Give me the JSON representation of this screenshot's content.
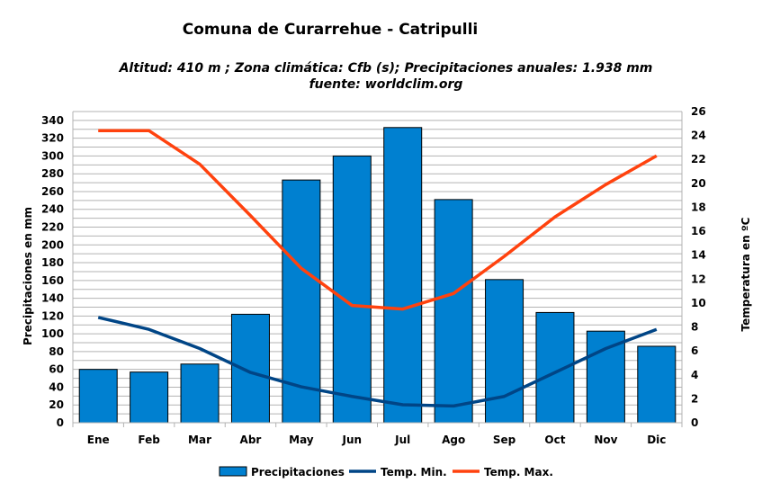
{
  "chart_data": {
    "type": "bar+line",
    "title": "Comuna de Curarrehue - Catripulli",
    "subtitle": "Altitud: 410 m ;  Zona climática: Cfb (s);  Precipitaciones anuales: 1.938 mm",
    "source": "fuente: worldclim.org",
    "categories": [
      "Ene",
      "Feb",
      "Mar",
      "Abr",
      "May",
      "Jun",
      "Jul",
      "Ago",
      "Sep",
      "Oct",
      "Nov",
      "Dic"
    ],
    "ylabel": "Precipitaciones en mm",
    "y2label": "Temperatura en ºC",
    "ylim": [
      0,
      350
    ],
    "yticks": [
      0,
      20,
      40,
      60,
      80,
      100,
      120,
      140,
      160,
      180,
      200,
      220,
      240,
      260,
      280,
      300,
      320,
      340
    ],
    "y2lim": [
      0,
      26
    ],
    "y2ticks": [
      0,
      2,
      4,
      6,
      8,
      10,
      12,
      14,
      16,
      18,
      20,
      22,
      24,
      26
    ],
    "grid": true,
    "legend_position": "bottom",
    "series": [
      {
        "name": "Precipitaciones",
        "type": "bar",
        "axis": "left",
        "color": "#0080d0",
        "values": [
          60,
          57,
          66,
          122,
          273,
          300,
          332,
          251,
          161,
          124,
          103,
          86
        ]
      },
      {
        "name": "Temp. Min.",
        "type": "line",
        "axis": "right",
        "color": "#004586",
        "values": [
          8.8,
          7.8,
          6.2,
          4.2,
          3.0,
          2.2,
          1.5,
          1.4,
          2.2,
          4.2,
          6.2,
          7.8
        ]
      },
      {
        "name": "Temp. Max.",
        "type": "line",
        "axis": "right",
        "color": "#ff420e",
        "values": [
          24.4,
          24.4,
          21.6,
          17.3,
          12.9,
          9.8,
          9.5,
          10.8,
          13.9,
          17.2,
          19.9,
          22.3
        ]
      }
    ]
  }
}
